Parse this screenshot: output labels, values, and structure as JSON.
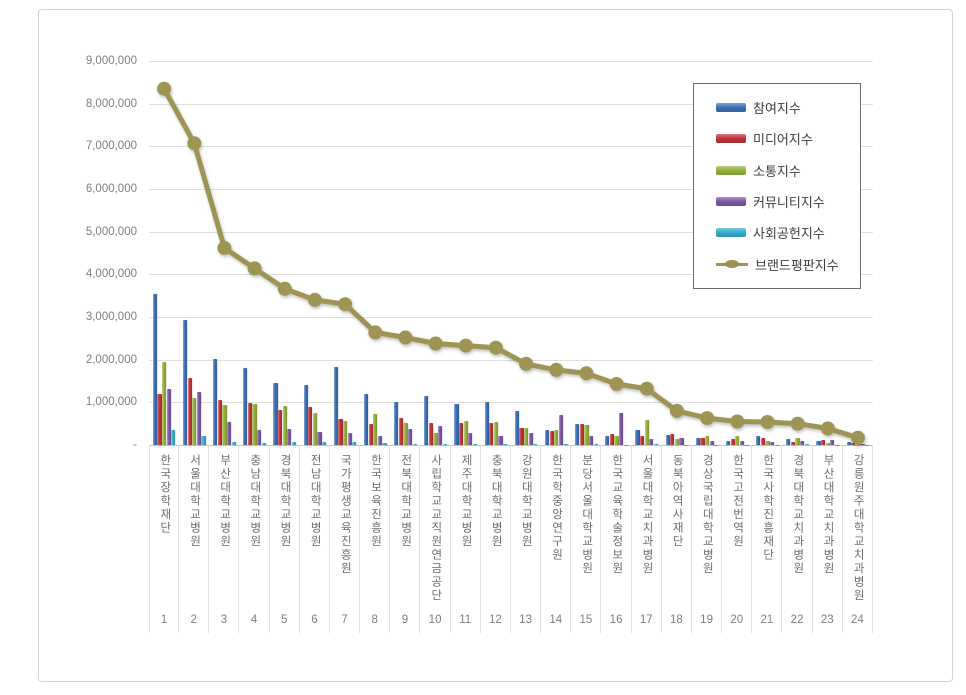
{
  "chart_data": {
    "type": "bar",
    "subtype": "grouped-bars-with-line-overlay",
    "title": "",
    "grid": true,
    "legend_position": "top-right",
    "categories": [
      "한국장학재단",
      "서울대학교병원",
      "부산대학교병원",
      "충남대학교병원",
      "경북대학교병원",
      "전남대학교병원",
      "국가평생교육진흥원",
      "한국보육진흥원",
      "전북대학교병원",
      "사립학교교직원연금공단",
      "제주대학교병원",
      "충북대학교병원",
      "강원대학교병원",
      "한국학중앙연구원",
      "분당서울대학교병원",
      "한국교육학술정보원",
      "서울대학교치과병원",
      "동북아역사재단",
      "경상국립대학교병원",
      "한국고전번역원",
      "한국사학진흥재단",
      "경북대학교치과병원",
      "부산대학교치과병원",
      "강릉원주대학교치과병원"
    ],
    "ranks": [
      "1",
      "2",
      "3",
      "4",
      "5",
      "6",
      "7",
      "8",
      "9",
      "10",
      "11",
      "12",
      "13",
      "14",
      "15",
      "16",
      "17",
      "18",
      "19",
      "20",
      "21",
      "22",
      "23",
      "24"
    ],
    "y_axis": {
      "min": 0,
      "max": 9000000,
      "step": 1000000,
      "tick_labels": [
        "-",
        "1,000,000",
        "2,000,000",
        "3,000,000",
        "4,000,000",
        "5,000,000",
        "6,000,000",
        "7,000,000",
        "8,000,000",
        "9,000,000"
      ]
    },
    "series": [
      {
        "name": "참여지수",
        "type": "bar",
        "color": "#3a6eb4",
        "values": [
          3550000,
          2930000,
          2020000,
          1810000,
          1460000,
          1400000,
          1840000,
          1200000,
          1000000,
          1150000,
          970000,
          1000000,
          790000,
          350000,
          500000,
          200000,
          350000,
          230000,
          160000,
          100000,
          200000,
          140000,
          100000,
          60000
        ]
      },
      {
        "name": "미디어지수",
        "type": "bar",
        "color": "#be3338",
        "values": [
          1200000,
          1580000,
          1060000,
          980000,
          820000,
          880000,
          620000,
          500000,
          630000,
          520000,
          520000,
          520000,
          400000,
          340000,
          500000,
          250000,
          220000,
          260000,
          170000,
          140000,
          160000,
          70000,
          110000,
          50000
        ]
      },
      {
        "name": "소통지수",
        "type": "bar",
        "color": "#94b13d",
        "values": [
          1950000,
          1100000,
          940000,
          950000,
          920000,
          750000,
          560000,
          720000,
          520000,
          280000,
          560000,
          540000,
          400000,
          350000,
          460000,
          220000,
          580000,
          130000,
          200000,
          200000,
          100000,
          160000,
          50000,
          30000
        ]
      },
      {
        "name": "커뮤니티지수",
        "type": "bar",
        "color": "#7c57a5",
        "values": [
          1320000,
          1240000,
          540000,
          360000,
          380000,
          310000,
          270000,
          200000,
          380000,
          440000,
          280000,
          220000,
          290000,
          700000,
          200000,
          750000,
          150000,
          170000,
          100000,
          100000,
          70000,
          100000,
          120000,
          20000
        ]
      },
      {
        "name": "사회공헌지수",
        "type": "bar",
        "color": "#35aecb",
        "values": [
          350000,
          220000,
          60000,
          50000,
          80000,
          60000,
          60000,
          40000,
          30000,
          20000,
          20000,
          20000,
          20000,
          20000,
          20000,
          10000,
          20000,
          10000,
          10000,
          10000,
          10000,
          20000,
          10000,
          10000
        ]
      },
      {
        "name": "브랜드평판지수",
        "type": "line",
        "color": "#9e9454",
        "values": [
          8350000,
          7070000,
          4620000,
          4140000,
          3660000,
          3400000,
          3300000,
          2640000,
          2520000,
          2380000,
          2330000,
          2280000,
          1900000,
          1760000,
          1680000,
          1430000,
          1320000,
          800000,
          630000,
          550000,
          540000,
          500000,
          390000,
          170000
        ]
      }
    ]
  }
}
